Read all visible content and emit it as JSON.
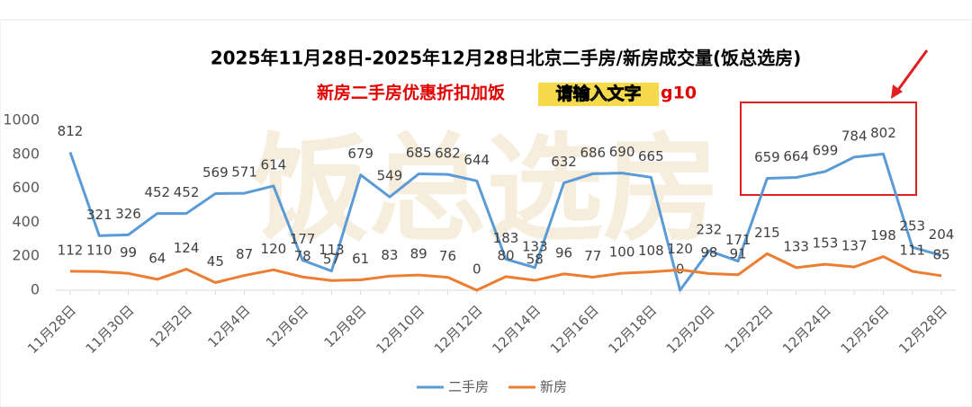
{
  "chart_data": {
    "type": "line",
    "title": "2025年11月28日-2025年12月28日北京二手房/新房成交量(饭总选房)",
    "subtitle": "新房二手房优惠折扣加饭",
    "subtitle_tail": "g10",
    "overlay_text": "请输入文字",
    "watermark": "饭总选房",
    "categories": [
      "11月28日",
      null,
      "11月30日",
      null,
      "12月2日",
      null,
      "12月4日",
      null,
      "12月6日",
      null,
      "12月8日",
      null,
      "12月10日",
      null,
      "12月12日",
      null,
      "12月14日",
      null,
      "12月16日",
      null,
      "12月18日",
      null,
      "12月20日",
      null,
      "12月22日",
      null,
      "12月24日",
      null,
      "12月26日",
      null,
      "12月28日"
    ],
    "series": [
      {
        "name": "二手房",
        "color": "#5b9bd5",
        "values": [
          812,
          321,
          326,
          452,
          452,
          569,
          571,
          614,
          177,
          113,
          679,
          549,
          685,
          682,
          644,
          183,
          133,
          632,
          686,
          690,
          665,
          0,
          232,
          171,
          659,
          664,
          699,
          784,
          802,
          253,
          204
        ]
      },
      {
        "name": "新房",
        "color": "#ed7d31",
        "values": [
          112,
          110,
          99,
          64,
          124,
          45,
          87,
          120,
          78,
          57,
          61,
          83,
          89,
          76,
          0,
          80,
          58,
          96,
          77,
          100,
          108,
          120,
          98,
          91,
          215,
          133,
          153,
          137,
          198,
          111,
          85
        ]
      }
    ],
    "ylim": [
      0,
      1000
    ],
    "yticks": [
      0,
      200,
      400,
      600,
      800,
      1000
    ],
    "grid": false,
    "legend": "bottom"
  }
}
